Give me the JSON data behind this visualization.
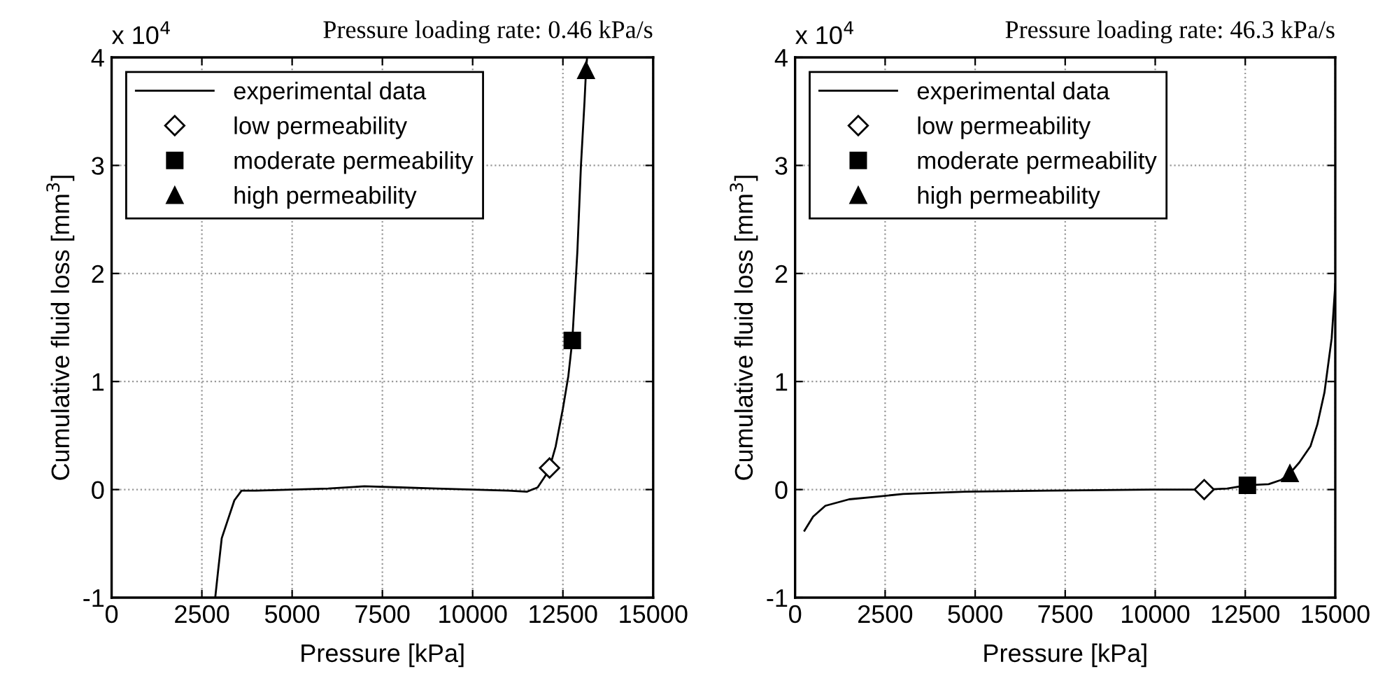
{
  "chart_data": [
    {
      "type": "line",
      "title": "Pressure loading rate: 0.46 kPa/s",
      "xlabel": "Pressure [kPa]",
      "ylabel": "Cumulative fluid loss [mm$^{3}$]",
      "annotations": [
        "x 10$^{4}$"
      ],
      "xlim": [
        0,
        15000
      ],
      "xticks": [
        0,
        2500,
        5000,
        7500,
        10000,
        12500,
        15000
      ],
      "ylim": [
        -1,
        4
      ],
      "yticks": [
        -1,
        0,
        1,
        2,
        3,
        4
      ],
      "grid": true,
      "legend": "top left",
      "series": [
        {
          "name": "experimental data",
          "color": "#000000",
          "marker": "none",
          "line_style": "solid",
          "x": [
            2870,
            2950,
            3050,
            3200,
            3400,
            3600,
            4000,
            5000,
            6000,
            7000,
            8000,
            9000,
            10000,
            11000,
            11500,
            11800,
            12000,
            12130,
            12300,
            12500,
            12650,
            12760,
            12900,
            13000,
            13100,
            13140,
            13170
          ],
          "values": [
            -1,
            -0.75,
            -0.45,
            -0.3,
            -0.1,
            -0.01,
            -0.01,
            0,
            0.01,
            0.03,
            0.02,
            0.01,
            0,
            -0.01,
            -0.02,
            0.02,
            0.12,
            0.2,
            0.4,
            0.75,
            1.05,
            1.38,
            2.2,
            3.0,
            3.6,
            3.88,
            4.0
          ]
        },
        {
          "name": "low permeability",
          "type": "scatter",
          "color": "#ffffff",
          "marker": "diamond",
          "x": [
            12130
          ],
          "values": [
            0.2
          ]
        },
        {
          "name": "moderate permeability",
          "type": "scatter",
          "color": "#000000",
          "marker": "square",
          "x": [
            12760
          ],
          "values": [
            1.38
          ]
        },
        {
          "name": "high permeability",
          "type": "scatter",
          "color": "#000000",
          "marker": "triangle",
          "x": [
            13140
          ],
          "values": [
            3.88
          ]
        }
      ]
    },
    {
      "type": "line",
      "title": "Pressure loading rate: 46.3 kPa/s",
      "xlabel": "Pressure [kPa]",
      "ylabel": "Cumulative fluid loss [mm$^{3}$]",
      "annotations": [
        "x 10$^{4}$"
      ],
      "xlim": [
        0,
        15000
      ],
      "xticks": [
        0,
        2500,
        5000,
        7500,
        10000,
        12500,
        15000
      ],
      "ylim": [
        -1,
        4
      ],
      "yticks": [
        -1,
        0,
        1,
        2,
        3,
        4
      ],
      "grid": true,
      "legend": "top left",
      "series": [
        {
          "name": "experimental data",
          "color": "#000000",
          "marker": "none",
          "line_style": "solid",
          "x": [
            260,
            500,
            840,
            1500,
            2140,
            3000,
            4730,
            7000,
            9900,
            11360,
            12000,
            12560,
            13150,
            13500,
            13740,
            14000,
            14310,
            14500,
            14700,
            14900,
            15000
          ],
          "values": [
            -0.38,
            -0.25,
            -0.15,
            -0.09,
            -0.07,
            -0.04,
            -0.02,
            -0.01,
            0,
            0,
            0.01,
            0.04,
            0.05,
            0.09,
            0.15,
            0.25,
            0.4,
            0.6,
            0.9,
            1.4,
            1.9
          ]
        },
        {
          "name": "low permeability",
          "type": "scatter",
          "color": "#ffffff",
          "marker": "diamond",
          "x": [
            11360
          ],
          "values": [
            0
          ]
        },
        {
          "name": "moderate permeability",
          "type": "scatter",
          "color": "#000000",
          "marker": "square",
          "x": [
            12560
          ],
          "values": [
            0.04
          ]
        },
        {
          "name": "high permeability",
          "type": "scatter",
          "color": "#000000",
          "marker": "triangle",
          "x": [
            13740
          ],
          "values": [
            0.15
          ]
        }
      ]
    }
  ]
}
